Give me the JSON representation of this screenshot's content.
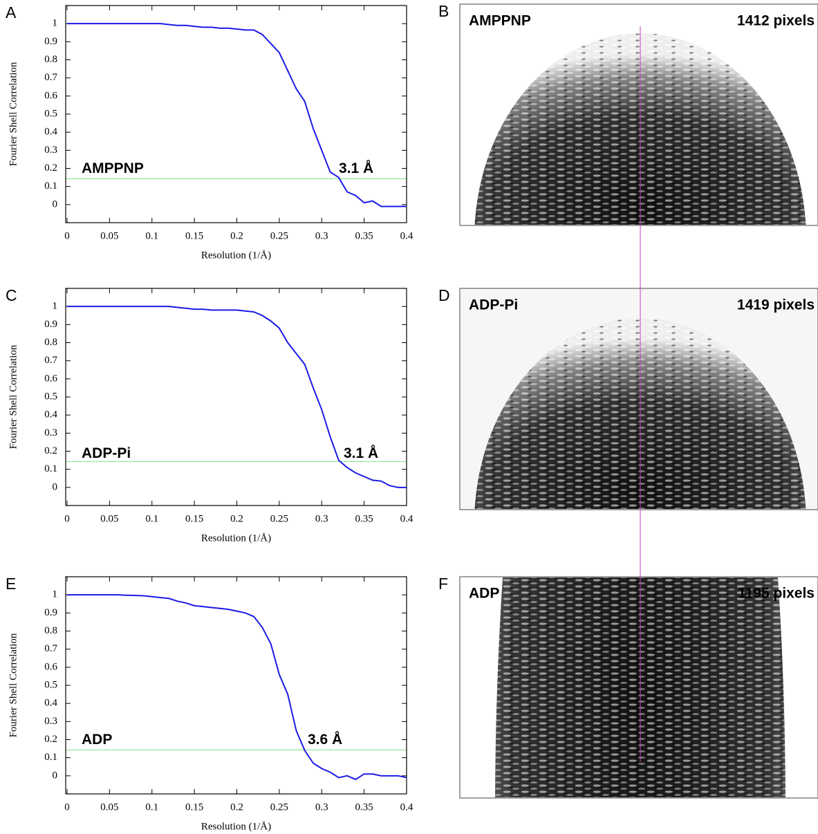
{
  "chart_data": [
    {
      "type": "line",
      "panel": "A",
      "ylabel": "Fourier Shell Correlation",
      "xlabel": "Resolution (1/Å)",
      "annotations": [
        "AMPPNP",
        "3.1 Å"
      ],
      "threshold": 0.143,
      "threshold_color": "#7fe07f",
      "xlim": [
        0,
        0.4
      ],
      "ylim": [
        -0.1,
        1.1
      ],
      "xticks": [
        0,
        0.05,
        0.1,
        0.15,
        0.2,
        0.25,
        0.3,
        0.35,
        0.4
      ],
      "yticks": [
        0,
        0.1,
        0.2,
        0.3,
        0.4,
        0.5,
        0.6,
        0.7,
        0.8,
        0.9,
        1
      ],
      "x": [
        0,
        0.01,
        0.02,
        0.03,
        0.04,
        0.05,
        0.06,
        0.07,
        0.08,
        0.09,
        0.1,
        0.11,
        0.12,
        0.13,
        0.14,
        0.15,
        0.16,
        0.17,
        0.18,
        0.19,
        0.2,
        0.21,
        0.22,
        0.23,
        0.24,
        0.25,
        0.26,
        0.27,
        0.28,
        0.29,
        0.3,
        0.31,
        0.32,
        0.33,
        0.34,
        0.35,
        0.36,
        0.37,
        0.38,
        0.39,
        0.4
      ],
      "color": "#1a1ae6",
      "values": [
        1,
        1,
        1,
        1,
        1,
        1,
        1,
        1,
        1,
        1,
        1,
        1,
        0.995,
        0.99,
        0.99,
        0.985,
        0.98,
        0.98,
        0.975,
        0.975,
        0.97,
        0.965,
        0.965,
        0.94,
        0.89,
        0.84,
        0.74,
        0.64,
        0.57,
        0.42,
        0.3,
        0.18,
        0.15,
        0.07,
        0.05,
        0.01,
        0.02,
        -0.01,
        -0.01,
        -0.01,
        -0.01
      ]
    },
    {
      "type": "line",
      "panel": "C",
      "ylabel": "Fourier Shell Correlation",
      "xlabel": "Resolution (1/Å)",
      "annotations": [
        "ADP-Pi",
        "3.1 Å"
      ],
      "threshold": 0.143,
      "threshold_color": "#7fe07f",
      "xlim": [
        0,
        0.4
      ],
      "ylim": [
        -0.1,
        1.1
      ],
      "xticks": [
        0,
        0.05,
        0.1,
        0.15,
        0.2,
        0.25,
        0.3,
        0.35,
        0.4
      ],
      "yticks": [
        0,
        0.1,
        0.2,
        0.3,
        0.4,
        0.5,
        0.6,
        0.7,
        0.8,
        0.9,
        1
      ],
      "x": [
        0,
        0.01,
        0.02,
        0.03,
        0.04,
        0.05,
        0.06,
        0.07,
        0.08,
        0.09,
        0.1,
        0.11,
        0.12,
        0.13,
        0.14,
        0.15,
        0.16,
        0.17,
        0.18,
        0.19,
        0.2,
        0.21,
        0.22,
        0.23,
        0.24,
        0.25,
        0.26,
        0.27,
        0.28,
        0.29,
        0.3,
        0.31,
        0.32,
        0.33,
        0.34,
        0.35,
        0.36,
        0.37,
        0.38,
        0.39,
        0.4
      ],
      "color": "#1a1ae6",
      "values": [
        1,
        1,
        1,
        1,
        1,
        1,
        1,
        1,
        1,
        1,
        1,
        1,
        1,
        0.995,
        0.99,
        0.985,
        0.985,
        0.98,
        0.98,
        0.98,
        0.98,
        0.975,
        0.97,
        0.95,
        0.92,
        0.88,
        0.8,
        0.74,
        0.68,
        0.55,
        0.43,
        0.28,
        0.15,
        0.11,
        0.08,
        0.06,
        0.04,
        0.035,
        0.01,
        0,
        0
      ]
    },
    {
      "type": "line",
      "panel": "E",
      "ylabel": "Fourier Shell Correlation",
      "xlabel": "Resolution (1/Å)",
      "annotations": [
        "ADP",
        "3.6 Å"
      ],
      "threshold": 0.143,
      "threshold_color": "#7fe07f",
      "xlim": [
        0,
        0.4
      ],
      "ylim": [
        -0.1,
        1.1
      ],
      "xticks": [
        0,
        0.05,
        0.1,
        0.15,
        0.2,
        0.25,
        0.3,
        0.35,
        0.4
      ],
      "yticks": [
        0,
        0.1,
        0.2,
        0.3,
        0.4,
        0.5,
        0.6,
        0.7,
        0.8,
        0.9,
        1
      ],
      "x": [
        0,
        0.01,
        0.02,
        0.03,
        0.04,
        0.05,
        0.06,
        0.07,
        0.08,
        0.09,
        0.1,
        0.11,
        0.12,
        0.13,
        0.14,
        0.15,
        0.16,
        0.17,
        0.18,
        0.19,
        0.2,
        0.21,
        0.22,
        0.23,
        0.24,
        0.25,
        0.26,
        0.27,
        0.28,
        0.29,
        0.3,
        0.31,
        0.32,
        0.33,
        0.34,
        0.35,
        0.36,
        0.37,
        0.38,
        0.39,
        0.4
      ],
      "color": "#1a1ae6",
      "values": [
        1,
        1,
        1,
        1,
        1,
        1,
        1,
        0.998,
        0.997,
        0.995,
        0.99,
        0.985,
        0.98,
        0.965,
        0.955,
        0.94,
        0.935,
        0.93,
        0.925,
        0.92,
        0.91,
        0.9,
        0.88,
        0.82,
        0.73,
        0.56,
        0.45,
        0.25,
        0.14,
        0.07,
        0.04,
        0.02,
        -0.01,
        0,
        -0.02,
        0.01,
        0.01,
        0,
        0,
        0,
        -0.01
      ]
    }
  ],
  "panels": [
    {
      "letter": "B",
      "sample": "AMPPNP",
      "size": "1412 pixels"
    },
    {
      "letter": "D",
      "sample": "ADP-Pi",
      "size": "1419 pixels"
    },
    {
      "letter": "F",
      "sample": "ADP",
      "size": "1195 pixels"
    }
  ]
}
